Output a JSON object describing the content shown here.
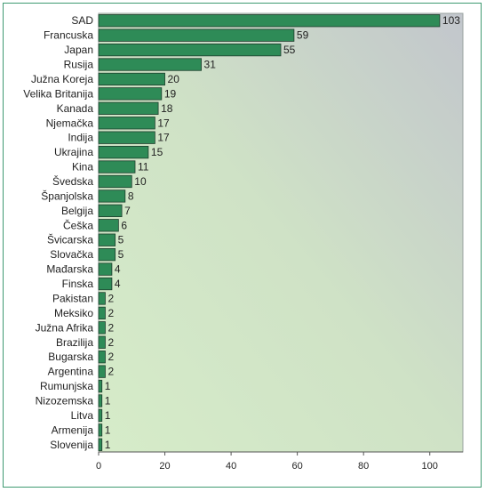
{
  "chart_data": {
    "type": "bar",
    "orientation": "horizontal",
    "categories": [
      "SAD",
      "Francuska",
      "Japan",
      "Rusija",
      "Južna Koreja",
      "Velika Britanija",
      "Kanada",
      "Njemačka",
      "Indija",
      "Ukrajina",
      "Kina",
      "Švedska",
      "Španjolska",
      "Belgija",
      "Češka",
      "Švicarska",
      "Slovačka",
      "Mađarska",
      "Finska",
      "Pakistan",
      "Meksiko",
      "Južna Afrika",
      "Brazilija",
      "Bugarska",
      "Argentina",
      "Rumunjska",
      "Nizozemska",
      "Litva",
      "Armenija",
      "Slovenija"
    ],
    "values": [
      103,
      59,
      55,
      31,
      20,
      19,
      18,
      17,
      17,
      15,
      11,
      10,
      8,
      7,
      6,
      5,
      5,
      4,
      4,
      2,
      2,
      2,
      2,
      2,
      2,
      1,
      1,
      1,
      1,
      1
    ],
    "xlim": [
      0,
      110
    ],
    "xticks": [
      0,
      20,
      40,
      60,
      80,
      100
    ],
    "title": "",
    "xlabel": "",
    "ylabel": "",
    "grid": false,
    "data_labels": true,
    "colors": {
      "bar": "#2e8b57",
      "bar_edge": "#1d3d2c",
      "plot_bg_light": "#d6ecc9",
      "plot_bg_dark": "#c2c6cc",
      "frame": "#3f9a72"
    }
  }
}
